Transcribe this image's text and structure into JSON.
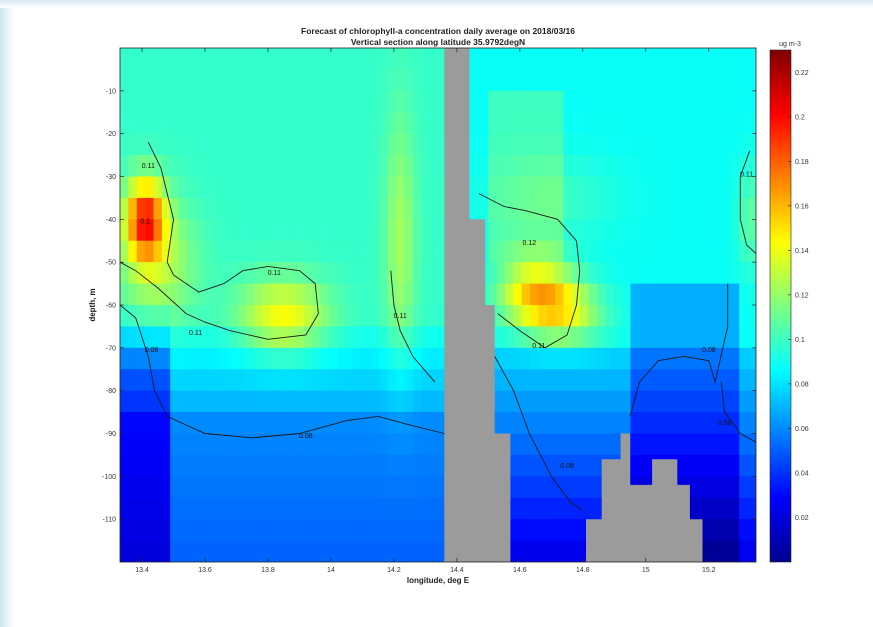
{
  "chart_data": {
    "type": "heatmap",
    "title": "Forecast of chlorophyll-a concentration daily average on 2018/03/16",
    "subtitle": "Vertical section along latitude 35.9792degN",
    "xlabel": "longitude, deg E",
    "ylabel": "depth, m",
    "xlim": [
      13.33,
      15.35
    ],
    "ylim": [
      -120,
      0
    ],
    "x_ticks": [
      "13.4",
      "13.6",
      "13.8",
      "14",
      "14.2",
      "14.4",
      "14.6",
      "14.8",
      "15",
      "15.2"
    ],
    "x_tick_values": [
      13.4,
      13.6,
      13.8,
      14.0,
      14.2,
      14.4,
      14.6,
      14.8,
      15.0,
      15.2
    ],
    "y_ticks": [
      "-10",
      "-20",
      "-30",
      "-40",
      "-50",
      "-60",
      "-70",
      "-80",
      "-90",
      "-100",
      "-110"
    ],
    "y_tick_values": [
      -10,
      -20,
      -30,
      -40,
      -50,
      -60,
      -70,
      -80,
      -90,
      -100,
      -110
    ],
    "colorbar": {
      "unit": "ug m-3",
      "range": [
        0.0,
        0.23
      ],
      "ticks": [
        "0.02",
        "0.04",
        "0.06",
        "0.08",
        "0.1",
        "0.12",
        "0.14",
        "0.16",
        "0.18",
        "0.2",
        "0.22"
      ],
      "tick_values": [
        0.02,
        0.04,
        0.06,
        0.08,
        0.1,
        0.12,
        0.14,
        0.16,
        0.18,
        0.2,
        0.22
      ],
      "colormap": "jet"
    },
    "land_color": "#9b9b9b",
    "contour_labels": [
      {
        "text": "0.11",
        "lon": 13.42,
        "depth": -28
      },
      {
        "text": "0.1",
        "lon": 13.41,
        "depth": -41
      },
      {
        "text": "0.11",
        "lon": 13.82,
        "depth": -53
      },
      {
        "text": "0.11",
        "lon": 13.57,
        "depth": -67
      },
      {
        "text": "0.08",
        "lon": 13.43,
        "depth": -71
      },
      {
        "text": "0.11",
        "lon": 14.22,
        "depth": -63
      },
      {
        "text": "0.08",
        "lon": 13.92,
        "depth": -91
      },
      {
        "text": "0.12",
        "lon": 14.63,
        "depth": -46
      },
      {
        "text": "0.11",
        "lon": 14.66,
        "depth": -70
      },
      {
        "text": "0.08",
        "lon": 14.75,
        "depth": -98
      },
      {
        "text": "0.08",
        "lon": 15.2,
        "depth": -71
      },
      {
        "text": "0.08",
        "lon": 15.25,
        "depth": -88
      },
      {
        "text": "0.11",
        "lon": 15.32,
        "depth": -30
      }
    ],
    "grid": false
  }
}
